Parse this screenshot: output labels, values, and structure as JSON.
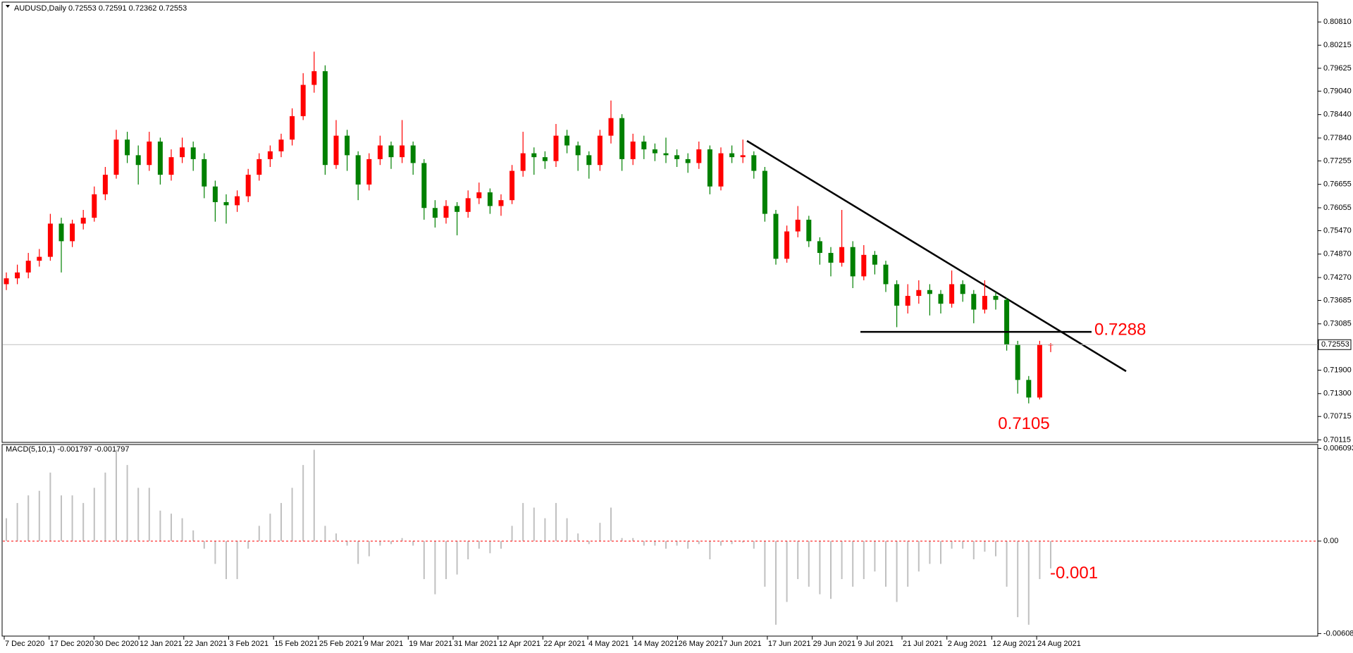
{
  "chart_data": [
    {
      "type": "candlestick",
      "title": "AUDUSD,Daily  0.72553 0.72591 0.72362 0.72553",
      "up_color": "#ff0000",
      "down_color": "#008000",
      "ylim": [
        0.7007,
        0.813
      ],
      "yticks": [
        {
          "value": 0.8081,
          "label": "0.80810"
        },
        0.80215,
        0.79625,
        {
          "value": 0.7904,
          "label": "0.79040"
        },
        {
          "value": 0.7844,
          "label": "0.78440"
        },
        {
          "value": 0.7784,
          "label": "0.77840"
        },
        0.77255,
        0.76655,
        0.76055,
        {
          "value": 0.7547,
          "label": "0.75470"
        },
        {
          "value": 0.7487,
          "label": "0.74870"
        },
        {
          "value": 0.7427,
          "label": "0.74270"
        },
        0.73685,
        0.73085,
        {
          "value": 0.719,
          "label": "0.71900"
        },
        {
          "value": 0.713,
          "label": "0.71300"
        },
        0.70715,
        0.70115
      ],
      "current_price": 0.72553,
      "annotations": [
        {
          "text": "0.7288",
          "value": 0.7288
        },
        {
          "text": "0.7105",
          "value": 0.7105
        }
      ],
      "date_labels": [
        "7 Dec 2020",
        "17 Dec 2020",
        "30 Dec 2020",
        "12 Jan 2021",
        "22 Jan 2021",
        "3 Feb 2021",
        "15 Feb 2021",
        "25 Feb 2021",
        "9 Mar 2021",
        "19 Mar 2021",
        "31 Mar 2021",
        "12 Apr 2021",
        "22 Apr 2021",
        "4 May 2021",
        "14 May 2021",
        "26 May 2021",
        "7 Jun 2021",
        "17 Jun 2021",
        "29 Jun 2021",
        "9 Jul 2021",
        "21 Jul 2021",
        "2 Aug 2021",
        "12 Aug 2021",
        "24 Aug 2021"
      ],
      "open": [
        0.741,
        0.7425,
        0.744,
        0.747,
        0.748,
        0.7565,
        0.752,
        0.7565,
        0.758,
        0.764,
        0.769,
        0.778,
        0.774,
        0.7715,
        0.7775,
        0.769,
        0.7735,
        0.776,
        0.773,
        0.766,
        0.762,
        0.7612,
        0.7635,
        0.769,
        0.773,
        0.775,
        0.778,
        0.784,
        0.792,
        0.7955,
        0.7715,
        0.779,
        0.774,
        0.7665,
        0.773,
        0.7765,
        0.7735,
        0.7765,
        0.772,
        0.7605,
        0.758,
        0.761,
        0.7595,
        0.763,
        0.7645,
        0.761,
        0.7625,
        0.77,
        0.7745,
        0.7735,
        0.7725,
        0.779,
        0.7765,
        0.774,
        0.7715,
        0.779,
        0.7835,
        0.773,
        0.7775,
        0.7755,
        0.7745,
        0.774,
        0.773,
        0.772,
        0.7755,
        0.766,
        0.7745,
        0.7735,
        0.774,
        0.77,
        0.759,
        0.7475,
        0.7545,
        0.7575,
        0.752,
        0.749,
        0.7465,
        0.7505,
        0.743,
        0.7485,
        0.746,
        0.741,
        0.7355,
        0.738,
        0.7395,
        0.7385,
        0.736,
        0.741,
        0.7385,
        0.7345,
        0.738,
        0.737,
        0.7255,
        0.7165,
        0.712,
        0.72553
      ],
      "high": [
        0.744,
        0.746,
        0.749,
        0.75,
        0.759,
        0.758,
        0.7575,
        0.76,
        0.766,
        0.771,
        0.7805,
        0.78,
        0.7765,
        0.78,
        0.7785,
        0.7755,
        0.7785,
        0.7775,
        0.7745,
        0.7675,
        0.764,
        0.765,
        0.7705,
        0.7745,
        0.7765,
        0.7795,
        0.786,
        0.795,
        0.8005,
        0.797,
        0.783,
        0.7805,
        0.775,
        0.7745,
        0.779,
        0.7775,
        0.783,
        0.7775,
        0.773,
        0.7625,
        0.7625,
        0.762,
        0.765,
        0.767,
        0.7655,
        0.764,
        0.7715,
        0.78,
        0.776,
        0.775,
        0.782,
        0.7805,
        0.7775,
        0.775,
        0.7805,
        0.788,
        0.7845,
        0.7795,
        0.779,
        0.777,
        0.7785,
        0.7755,
        0.7745,
        0.7775,
        0.7765,
        0.776,
        0.7765,
        0.778,
        0.775,
        0.771,
        0.76,
        0.756,
        0.761,
        0.7585,
        0.753,
        0.7505,
        0.76,
        0.752,
        0.751,
        0.7495,
        0.747,
        0.742,
        0.741,
        0.742,
        0.741,
        0.7395,
        0.7445,
        0.742,
        0.7395,
        0.742,
        0.739,
        0.7375,
        0.7265,
        0.7175,
        0.7265,
        0.72591
      ],
      "low": [
        0.7395,
        0.741,
        0.7425,
        0.7455,
        0.747,
        0.744,
        0.7505,
        0.755,
        0.757,
        0.7625,
        0.768,
        0.772,
        0.7665,
        0.77,
        0.7665,
        0.7675,
        0.772,
        0.77,
        0.763,
        0.757,
        0.7565,
        0.7595,
        0.762,
        0.7675,
        0.771,
        0.7735,
        0.7765,
        0.783,
        0.79,
        0.769,
        0.7705,
        0.77,
        0.7625,
        0.765,
        0.7715,
        0.7705,
        0.772,
        0.769,
        0.7575,
        0.7555,
        0.7565,
        0.7535,
        0.758,
        0.7615,
        0.759,
        0.7585,
        0.7615,
        0.7685,
        0.769,
        0.7705,
        0.771,
        0.7745,
        0.77,
        0.768,
        0.77,
        0.777,
        0.77,
        0.7715,
        0.773,
        0.7725,
        0.772,
        0.771,
        0.7695,
        0.7705,
        0.764,
        0.765,
        0.772,
        0.772,
        0.768,
        0.757,
        0.746,
        0.7465,
        0.753,
        0.7505,
        0.746,
        0.743,
        0.7455,
        0.74,
        0.742,
        0.7435,
        0.739,
        0.73,
        0.7335,
        0.736,
        0.733,
        0.7335,
        0.735,
        0.7365,
        0.731,
        0.7335,
        0.7345,
        0.724,
        0.713,
        0.7105,
        0.7115,
        0.72362
      ],
      "close": [
        0.7425,
        0.744,
        0.747,
        0.748,
        0.7565,
        0.752,
        0.7565,
        0.758,
        0.764,
        0.769,
        0.778,
        0.774,
        0.7715,
        0.7775,
        0.769,
        0.7735,
        0.776,
        0.773,
        0.766,
        0.762,
        0.7612,
        0.7635,
        0.769,
        0.773,
        0.775,
        0.778,
        0.784,
        0.792,
        0.7955,
        0.7715,
        0.779,
        0.774,
        0.7665,
        0.773,
        0.7765,
        0.7735,
        0.7765,
        0.772,
        0.7605,
        0.758,
        0.761,
        0.7595,
        0.763,
        0.7645,
        0.761,
        0.7625,
        0.77,
        0.7745,
        0.7735,
        0.7725,
        0.779,
        0.7765,
        0.774,
        0.7715,
        0.779,
        0.7835,
        0.773,
        0.7775,
        0.7755,
        0.7745,
        0.774,
        0.773,
        0.772,
        0.7755,
        0.766,
        0.7745,
        0.7735,
        0.774,
        0.77,
        0.759,
        0.7475,
        0.7545,
        0.7575,
        0.752,
        0.749,
        0.7465,
        0.7505,
        0.743,
        0.7485,
        0.746,
        0.741,
        0.7355,
        0.738,
        0.7395,
        0.7385,
        0.736,
        0.741,
        0.7385,
        0.7345,
        0.738,
        0.737,
        0.7255,
        0.7165,
        0.712,
        0.72553,
        0.72553
      ]
    },
    {
      "type": "histogram",
      "title": "MACD(5,10,1) -0.001797 -0.001797",
      "color": "#c0c0c0",
      "zero_color": "#ff0000",
      "ylim": [
        -0.0062,
        0.0063
      ],
      "yticks": [
        0.006093,
        {
          "value": 0,
          "label": "0.00"
        },
        -0.00608
      ],
      "annotations": [
        {
          "text": "-0.001",
          "value": -0.001
        }
      ],
      "values": [
        0.0015,
        0.0025,
        0.003,
        0.0033,
        0.0045,
        0.003,
        0.003,
        0.0025,
        0.0035,
        0.0045,
        0.006,
        0.005,
        0.0035,
        0.0035,
        0.002,
        0.0018,
        0.0015,
        0.0007,
        -0.0005,
        -0.0015,
        -0.0025,
        -0.0025,
        -0.0005,
        0.001,
        0.0018,
        0.0025,
        0.0035,
        0.005,
        0.006,
        0.001,
        0.0005,
        -0.0003,
        -0.0015,
        -0.001,
        -0.0003,
        -0.0002,
        0.0002,
        -0.0003,
        -0.0025,
        -0.0035,
        -0.0025,
        -0.0022,
        -0.0012,
        -0.0005,
        -0.0008,
        -0.0005,
        0.001,
        0.0025,
        0.0022,
        0.0015,
        0.0025,
        0.0015,
        0.0005,
        -0.0002,
        0.0012,
        0.0022,
        0.0002,
        0.0002,
        -0.0003,
        -0.0003,
        -0.0005,
        -0.0003,
        -0.0005,
        -0.0002,
        -0.0012,
        -0.0003,
        -0.0002,
        -0.0001,
        -0.0005,
        -0.003,
        -0.0055,
        -0.004,
        -0.0025,
        -0.003,
        -0.0035,
        -0.0038,
        -0.0025,
        -0.003,
        -0.0025,
        -0.002,
        -0.003,
        -0.004,
        -0.003,
        -0.002,
        -0.0015,
        -0.0015,
        -0.0005,
        -0.0005,
        -0.0012,
        -0.0007,
        -0.001,
        -0.003,
        -0.005,
        -0.0055,
        -0.0025,
        -0.001797
      ]
    }
  ]
}
